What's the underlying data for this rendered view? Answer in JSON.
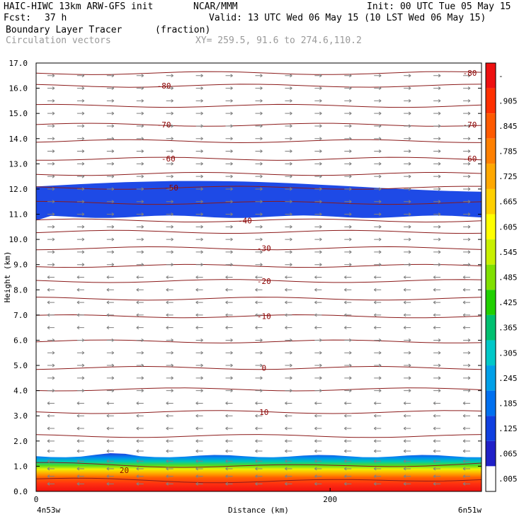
{
  "header": {
    "model": "HAIC-HIWC 13km ARW-GFS init",
    "org": "NCAR/MMM",
    "init": "Init: 00 UTC Tue 05 May 15",
    "fcst_label": "Fcst:",
    "fcst_value": "37 h",
    "valid": "Valid: 13 UTC Wed 06 May 15 (10 LST Wed 06 May 15)",
    "field_name": "Boundary Layer Tracer",
    "field_units": "(fraction)",
    "overlay_name": "Circulation vectors",
    "xy_range": "XY= 259.5, 91.6 to 274.6,110.2"
  },
  "chart_data": {
    "type": "heatmap",
    "title": "Boundary Layer Tracer",
    "units": "(fraction)",
    "xlabel": "Distance (km)",
    "ylabel": "Height (km)",
    "xlim": [
      0,
      303
    ],
    "ylim": [
      0,
      17
    ],
    "x_tick_values": [
      0,
      200
    ],
    "x_tick_labels": [
      "0",
      "200"
    ],
    "x_end_labels": [
      "4n53w",
      "6n51w"
    ],
    "y_tick_values": [
      0,
      1,
      2,
      3,
      4,
      5,
      6,
      7,
      8,
      9,
      10,
      11,
      12,
      13,
      14,
      15,
      16,
      17
    ],
    "y_tick_labels": [
      "0.0",
      "1.0",
      "2.0",
      "3.0",
      "4.0",
      "5.0",
      "6.0",
      "7.0",
      "8.0",
      "9.0",
      "10.0",
      "11.0",
      "12.0",
      "13.0",
      "14.0",
      "15.0",
      "16.0",
      "17.0"
    ],
    "colorbar": {
      "labels": [
        "-",
        ".905",
        ".845",
        ".785",
        ".725",
        ".665",
        ".605",
        ".545",
        ".485",
        ".425",
        ".365",
        ".305",
        ".245",
        ".185",
        ".125",
        ".065",
        ".005"
      ],
      "colors": [
        "#ee1010",
        "#ff3000",
        "#ff5a00",
        "#ff8000",
        "#ffa800",
        "#ffd000",
        "#ffff00",
        "#c8f000",
        "#80e000",
        "#20d000",
        "#00c070",
        "#00c8c8",
        "#00a0e8",
        "#0070f0",
        "#1040e0",
        "#2020c8",
        "#ffffff"
      ]
    },
    "tracer_layers": {
      "surface_layer": {
        "base_km": 0.0,
        "top_km": 1.4,
        "max_fraction": 0.96
      },
      "upper_layer": {
        "base_km": 10.9,
        "top_km": 12.1,
        "max_fraction": 0.005
      }
    },
    "isotherms": {
      "levels_km": [
        0.5,
        1.1,
        2.2,
        3.15,
        4.05,
        4.9,
        5.95,
        6.95,
        7.65,
        8.35,
        8.95,
        9.65,
        10.3,
        10.75,
        11.45,
        12.05,
        12.6,
        13.2,
        13.9,
        14.55,
        15.3,
        16.1,
        16.6
      ],
      "labels": [
        {
          "text": "20",
          "x_km": 60,
          "y_km": 0.85
        },
        {
          "text": "10",
          "x_km": 155,
          "y_km": 3.15
        },
        {
          "text": "0",
          "x_km": 155,
          "y_km": 4.9
        },
        {
          "text": "-10",
          "x_km": 155,
          "y_km": 6.95
        },
        {
          "text": "-20",
          "x_km": 155,
          "y_km": 8.35
        },
        {
          "text": "-30",
          "x_km": 155,
          "y_km": 9.65
        },
        {
          "text": "-40",
          "x_km": 142,
          "y_km": 10.75
        },
        {
          "text": "-50",
          "x_km": 92,
          "y_km": 12.05
        },
        {
          "text": "-60",
          "x_km": 90,
          "y_km": 13.2
        },
        {
          "text": "-60",
          "x_km": 295,
          "y_km": 13.2
        },
        {
          "text": "-70",
          "x_km": 87,
          "y_km": 14.55
        },
        {
          "text": "-70",
          "x_km": 295,
          "y_km": 14.55
        },
        {
          "text": "-80",
          "x_km": 87,
          "y_km": 16.1
        },
        {
          "text": "-80",
          "x_km": 295,
          "y_km": 16.6
        }
      ]
    },
    "wind_vectors": {
      "rows_km": [
        0.3,
        0.6,
        0.9,
        1.2,
        1.6,
        2.0,
        2.5,
        3.0,
        3.5,
        4.0,
        4.5,
        5.0,
        5.5,
        6.0,
        6.5,
        7.0,
        7.5,
        8.0,
        8.5,
        9.0,
        9.5,
        10.0,
        10.5,
        11.0,
        11.5,
        12.0,
        12.5,
        13.0,
        13.5,
        14.0,
        14.5,
        15.0,
        15.5,
        16.0,
        16.5
      ],
      "u_direction_by_row": [
        -1,
        -1,
        -1,
        -1,
        -1,
        -1,
        -1,
        -1,
        -1,
        1,
        1,
        1,
        1,
        1,
        -1,
        -1,
        -1,
        -1,
        -1,
        1,
        1,
        1,
        1,
        1,
        1,
        1,
        1,
        1,
        1,
        1,
        1,
        1,
        1,
        1,
        1
      ],
      "color": "#808080"
    },
    "colors": {
      "isotherm": "#8b1a1a",
      "grid_frame": "#000000"
    }
  }
}
